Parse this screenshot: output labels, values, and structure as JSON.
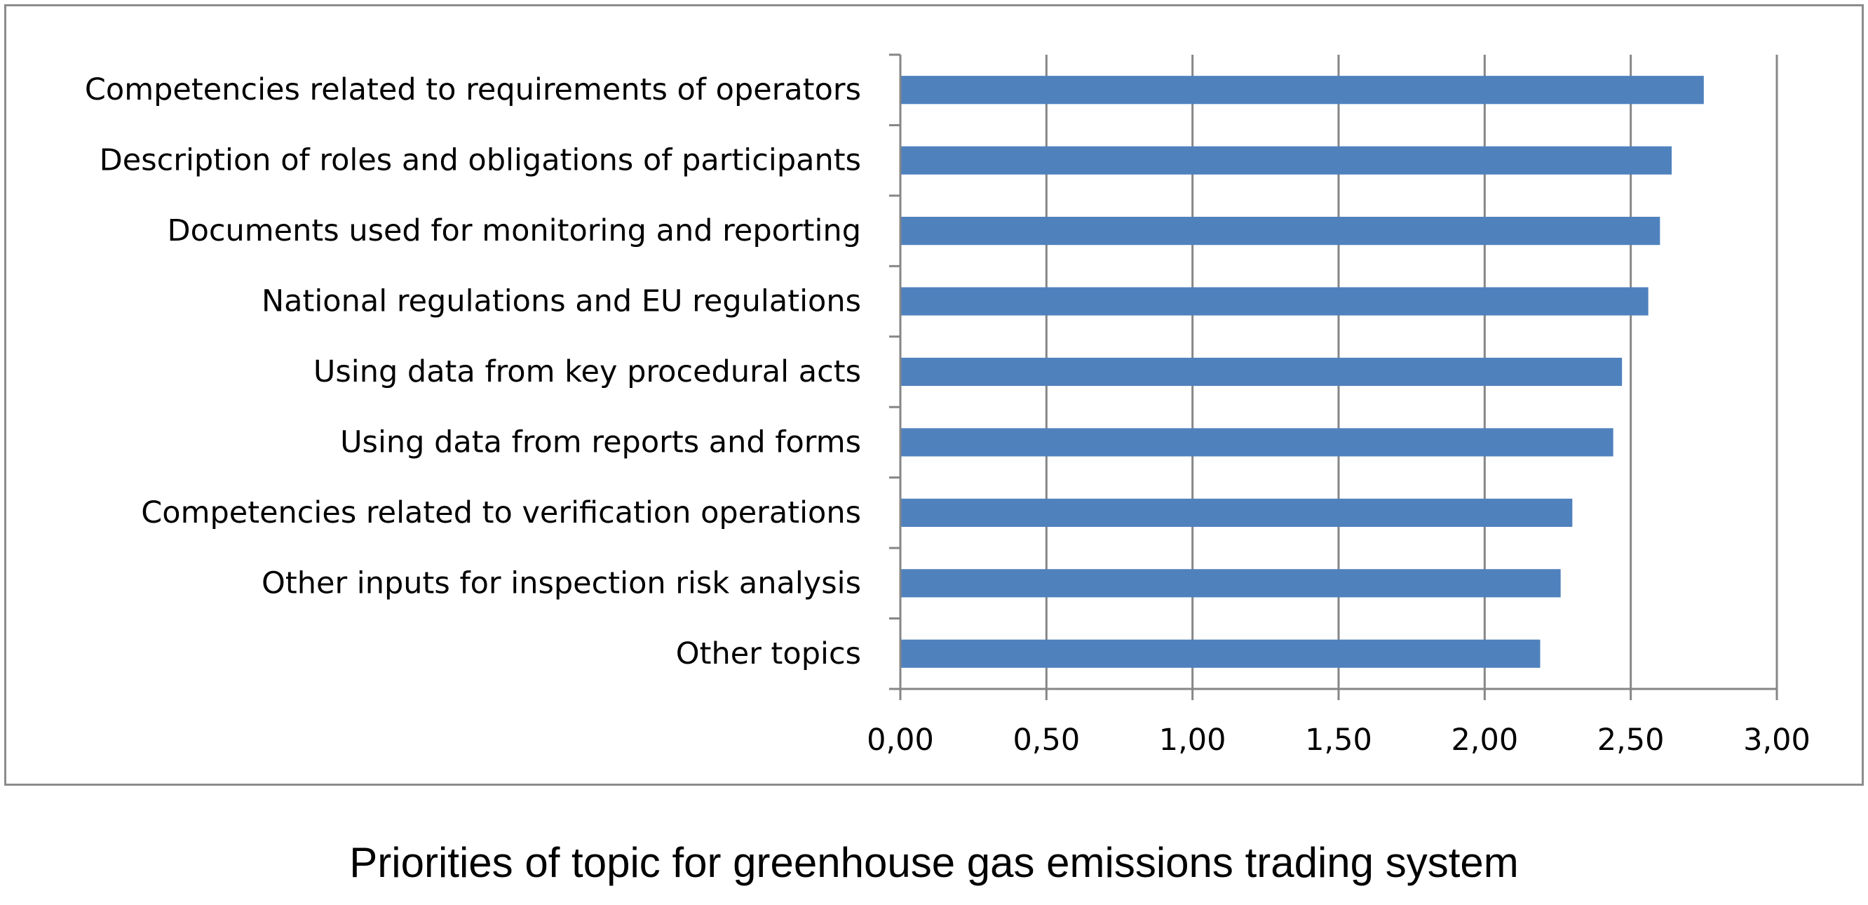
{
  "caption": "Priorities of topic for greenhouse gas emissions trading system",
  "colors": {
    "bar": "#4f81bd",
    "grid": "#868686",
    "axis": "#868686",
    "text": "#000000",
    "frame": "#8c8c8c"
  },
  "chart_data": {
    "type": "bar",
    "orientation": "horizontal",
    "title": "",
    "xlabel": "",
    "ylabel": "",
    "categories": [
      "Competencies related to requirements of operators",
      "Description of roles and obligations of participants",
      "Documents used for monitoring and reporting",
      "National regulations and EU regulations",
      "Using data from key procedural acts",
      "Using data from reports and forms",
      "Competencies related to verification operations",
      "Other inputs for inspection risk analysis",
      "Other topics"
    ],
    "values": [
      2.75,
      2.64,
      2.6,
      2.56,
      2.47,
      2.44,
      2.3,
      2.26,
      2.19
    ],
    "xlim": [
      0,
      3
    ],
    "x_ticks": [
      0,
      0.5,
      1,
      1.5,
      2,
      2.5,
      3
    ],
    "x_tick_labels": [
      "0,00",
      "0,50",
      "1,00",
      "1,50",
      "2,00",
      "2,50",
      "3,00"
    ],
    "grid": true,
    "legend": "none"
  }
}
